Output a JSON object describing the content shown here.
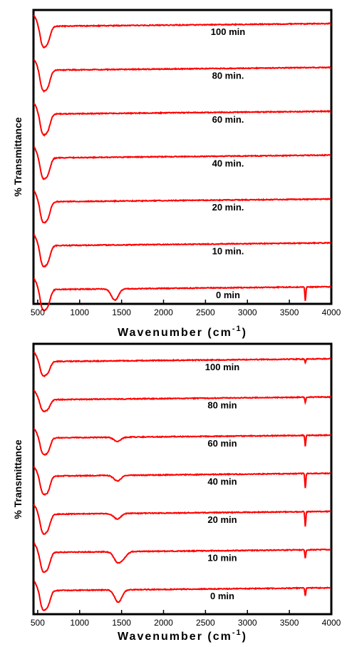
{
  "colors": {
    "series": "#ff0000",
    "axis": "#000000",
    "background": "#ffffff"
  },
  "chart_data": [
    {
      "type": "line",
      "xlabel": "Wavenumber (cm",
      "xlabel_sup": "-1",
      "xlabel_close": ")",
      "ylabel": "% Transmittance",
      "xlim": [
        450,
        4000
      ],
      "xticks": [
        500,
        1000,
        1500,
        2000,
        2500,
        3000,
        3500,
        4000
      ],
      "y_ticks_shown": false,
      "grid": false,
      "legend": "none",
      "series": [
        {
          "name": "100 min",
          "valleys": [
            [
              560,
              0.55
            ],
            [
              620,
              0.45
            ]
          ],
          "bumps": [],
          "sharp": []
        },
        {
          "name": "80 min.",
          "valleys": [
            [
              560,
              0.55
            ],
            [
              620,
              0.45
            ]
          ],
          "bumps": [],
          "sharp": []
        },
        {
          "name": "60 min.",
          "valleys": [
            [
              560,
              0.55
            ],
            [
              620,
              0.45
            ]
          ],
          "bumps": [],
          "sharp": []
        },
        {
          "name": "40 min.",
          "valleys": [
            [
              560,
              0.55
            ],
            [
              620,
              0.45
            ]
          ],
          "bumps": [],
          "sharp": []
        },
        {
          "name": "20 min.",
          "valleys": [
            [
              560,
              0.55
            ],
            [
              620,
              0.45
            ]
          ],
          "bumps": [],
          "sharp": []
        },
        {
          "name": "10 min.",
          "valleys": [
            [
              560,
              0.55
            ],
            [
              620,
              0.45
            ]
          ],
          "bumps": [],
          "sharp": []
        },
        {
          "name": "0 min",
          "valleys": [
            [
              560,
              0.55
            ],
            [
              620,
              0.45
            ],
            [
              1420,
              0.35
            ]
          ],
          "bumps": [],
          "sharp": [
            [
              3690,
              0.45
            ]
          ]
        }
      ]
    },
    {
      "type": "line",
      "xlabel": "Wavenumber (cm",
      "xlabel_sup": "-1",
      "xlabel_close": ")",
      "ylabel": "% Transmittance",
      "xlim": [
        450,
        4000
      ],
      "xticks": [
        500,
        1000,
        1500,
        2000,
        2500,
        3000,
        3500,
        4000
      ],
      "y_ticks_shown": false,
      "grid": false,
      "legend": "none",
      "series": [
        {
          "name": "100 min",
          "valleys": [
            [
              560,
              0.45
            ],
            [
              620,
              0.35
            ]
          ],
          "bumps": [],
          "sharp": [
            [
              3690,
              0.15
            ]
          ]
        },
        {
          "name": "80 min",
          "valleys": [
            [
              560,
              0.35
            ],
            [
              620,
              0.3
            ]
          ],
          "bumps": [],
          "sharp": [
            [
              3690,
              0.2
            ]
          ]
        },
        {
          "name": "60 min",
          "valleys": [
            [
              560,
              0.5
            ],
            [
              620,
              0.45
            ],
            [
              1450,
              0.15
            ]
          ],
          "bumps": [],
          "sharp": [
            [
              3690,
              0.4
            ]
          ]
        },
        {
          "name": "40 min",
          "valleys": [
            [
              560,
              0.55
            ],
            [
              620,
              0.5
            ],
            [
              1450,
              0.2
            ]
          ],
          "bumps": [],
          "sharp": [
            [
              3690,
              0.55
            ]
          ]
        },
        {
          "name": "20 min",
          "valleys": [
            [
              560,
              0.6
            ],
            [
              620,
              0.5
            ],
            [
              1450,
              0.2
            ]
          ],
          "bumps": [],
          "sharp": [
            [
              3690,
              0.55
            ]
          ]
        },
        {
          "name": "10 min",
          "valleys": [
            [
              560,
              0.6
            ],
            [
              620,
              0.5
            ],
            [
              1450,
              0.35
            ],
            [
              1520,
              0.2
            ]
          ],
          "bumps": [],
          "sharp": [
            [
              3690,
              0.3
            ]
          ]
        },
        {
          "name": "0 min",
          "valleys": [
            [
              560,
              0.6
            ],
            [
              620,
              0.5
            ],
            [
              1460,
              0.45
            ]
          ],
          "bumps": [],
          "sharp": [
            [
              3690,
              0.3
            ]
          ]
        }
      ]
    }
  ]
}
